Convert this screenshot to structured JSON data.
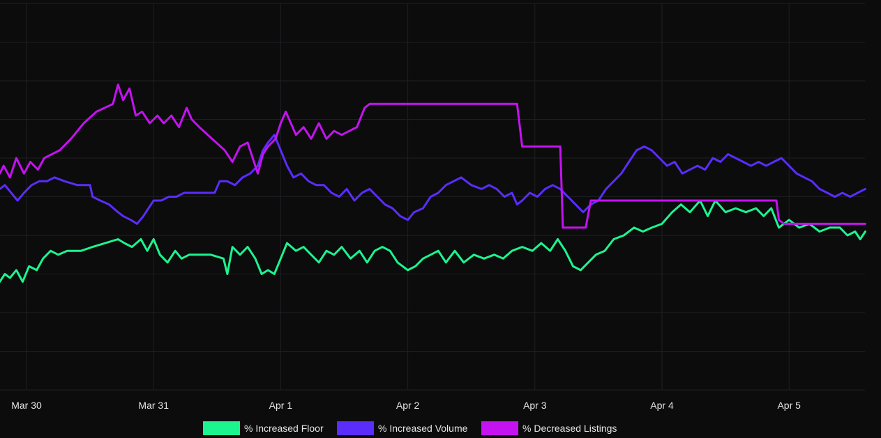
{
  "chart_data": {
    "type": "line",
    "title": "",
    "xlabel": "",
    "ylabel": "",
    "x_ticks": [
      "Mar 30",
      "Mar 31",
      "Apr 1",
      "Apr 2",
      "Apr 3",
      "Apr 4",
      "Apr 5"
    ],
    "xlim": [
      -0.21,
      6.6
    ],
    "ylim": [
      0,
      10
    ],
    "grid": true,
    "legend_position": "bottom",
    "series": [
      {
        "name": "% Increased Floor",
        "color": "#1cf58f",
        "points": [
          [
            -0.21,
            2.8
          ],
          [
            -0.17,
            3.0
          ],
          [
            -0.13,
            2.9
          ],
          [
            -0.08,
            3.1
          ],
          [
            -0.03,
            2.8
          ],
          [
            0.02,
            3.2
          ],
          [
            0.08,
            3.1
          ],
          [
            0.13,
            3.4
          ],
          [
            0.19,
            3.6
          ],
          [
            0.25,
            3.5
          ],
          [
            0.32,
            3.6
          ],
          [
            0.43,
            3.6
          ],
          [
            0.52,
            3.7
          ],
          [
            0.62,
            3.8
          ],
          [
            0.72,
            3.9
          ],
          [
            0.77,
            3.8
          ],
          [
            0.83,
            3.7
          ],
          [
            0.9,
            3.9
          ],
          [
            0.95,
            3.6
          ],
          [
            1.0,
            3.9
          ],
          [
            1.05,
            3.5
          ],
          [
            1.11,
            3.3
          ],
          [
            1.17,
            3.6
          ],
          [
            1.22,
            3.4
          ],
          [
            1.28,
            3.5
          ],
          [
            1.34,
            3.5
          ],
          [
            1.45,
            3.5
          ],
          [
            1.55,
            3.4
          ],
          [
            1.58,
            3.0
          ],
          [
            1.62,
            3.7
          ],
          [
            1.68,
            3.5
          ],
          [
            1.74,
            3.7
          ],
          [
            1.8,
            3.4
          ],
          [
            1.85,
            3.0
          ],
          [
            1.9,
            3.1
          ],
          [
            1.95,
            3.0
          ],
          [
            2.0,
            3.4
          ],
          [
            2.05,
            3.8
          ],
          [
            2.12,
            3.6
          ],
          [
            2.18,
            3.7
          ],
          [
            2.24,
            3.5
          ],
          [
            2.3,
            3.3
          ],
          [
            2.36,
            3.6
          ],
          [
            2.42,
            3.5
          ],
          [
            2.48,
            3.7
          ],
          [
            2.55,
            3.4
          ],
          [
            2.62,
            3.6
          ],
          [
            2.68,
            3.3
          ],
          [
            2.74,
            3.6
          ],
          [
            2.8,
            3.7
          ],
          [
            2.86,
            3.6
          ],
          [
            2.92,
            3.3
          ],
          [
            3.0,
            3.1
          ],
          [
            3.06,
            3.2
          ],
          [
            3.12,
            3.4
          ],
          [
            3.18,
            3.5
          ],
          [
            3.24,
            3.6
          ],
          [
            3.3,
            3.3
          ],
          [
            3.37,
            3.6
          ],
          [
            3.44,
            3.3
          ],
          [
            3.52,
            3.5
          ],
          [
            3.6,
            3.4
          ],
          [
            3.68,
            3.5
          ],
          [
            3.75,
            3.4
          ],
          [
            3.82,
            3.6
          ],
          [
            3.9,
            3.7
          ],
          [
            3.98,
            3.6
          ],
          [
            4.05,
            3.8
          ],
          [
            4.12,
            3.6
          ],
          [
            4.18,
            3.9
          ],
          [
            4.24,
            3.6
          ],
          [
            4.3,
            3.2
          ],
          [
            4.36,
            3.1
          ],
          [
            4.42,
            3.3
          ],
          [
            4.48,
            3.5
          ],
          [
            4.55,
            3.6
          ],
          [
            4.62,
            3.9
          ],
          [
            4.7,
            4.0
          ],
          [
            4.78,
            4.2
          ],
          [
            4.85,
            4.1
          ],
          [
            4.92,
            4.2
          ],
          [
            5.0,
            4.3
          ],
          [
            5.08,
            4.6
          ],
          [
            5.15,
            4.8
          ],
          [
            5.22,
            4.6
          ],
          [
            5.3,
            4.9
          ],
          [
            5.36,
            4.5
          ],
          [
            5.42,
            4.9
          ],
          [
            5.5,
            4.6
          ],
          [
            5.58,
            4.7
          ],
          [
            5.66,
            4.6
          ],
          [
            5.74,
            4.7
          ],
          [
            5.8,
            4.5
          ],
          [
            5.86,
            4.7
          ],
          [
            5.92,
            4.2
          ],
          [
            6.0,
            4.4
          ],
          [
            6.08,
            4.2
          ],
          [
            6.16,
            4.3
          ],
          [
            6.24,
            4.1
          ],
          [
            6.32,
            4.2
          ],
          [
            6.4,
            4.2
          ],
          [
            6.46,
            4.0
          ],
          [
            6.52,
            4.1
          ],
          [
            6.56,
            3.9
          ],
          [
            6.6,
            4.1
          ]
        ]
      },
      {
        "name": "% Increased Volume",
        "color": "#5a2dfa",
        "points": [
          [
            -0.21,
            5.2
          ],
          [
            -0.17,
            5.3
          ],
          [
            -0.12,
            5.1
          ],
          [
            -0.07,
            4.9
          ],
          [
            -0.02,
            5.1
          ],
          [
            0.04,
            5.3
          ],
          [
            0.1,
            5.4
          ],
          [
            0.16,
            5.4
          ],
          [
            0.22,
            5.5
          ],
          [
            0.3,
            5.4
          ],
          [
            0.4,
            5.3
          ],
          [
            0.5,
            5.3
          ],
          [
            0.52,
            5.0
          ],
          [
            0.58,
            4.9
          ],
          [
            0.65,
            4.8
          ],
          [
            0.72,
            4.6
          ],
          [
            0.76,
            4.5
          ],
          [
            0.82,
            4.4
          ],
          [
            0.87,
            4.3
          ],
          [
            0.92,
            4.5
          ],
          [
            0.96,
            4.7
          ],
          [
            1.0,
            4.9
          ],
          [
            1.06,
            4.9
          ],
          [
            1.12,
            5.0
          ],
          [
            1.18,
            5.0
          ],
          [
            1.24,
            5.1
          ],
          [
            1.3,
            5.1
          ],
          [
            1.38,
            5.1
          ],
          [
            1.48,
            5.1
          ],
          [
            1.52,
            5.4
          ],
          [
            1.58,
            5.4
          ],
          [
            1.64,
            5.3
          ],
          [
            1.7,
            5.5
          ],
          [
            1.76,
            5.6
          ],
          [
            1.82,
            5.8
          ],
          [
            1.86,
            6.2
          ],
          [
            1.9,
            6.4
          ],
          [
            1.95,
            6.6
          ],
          [
            2.0,
            6.2
          ],
          [
            2.05,
            5.8
          ],
          [
            2.1,
            5.5
          ],
          [
            2.16,
            5.6
          ],
          [
            2.22,
            5.4
          ],
          [
            2.28,
            5.3
          ],
          [
            2.34,
            5.3
          ],
          [
            2.4,
            5.1
          ],
          [
            2.46,
            5.0
          ],
          [
            2.52,
            5.2
          ],
          [
            2.58,
            4.9
          ],
          [
            2.64,
            5.1
          ],
          [
            2.7,
            5.2
          ],
          [
            2.76,
            5.0
          ],
          [
            2.82,
            4.8
          ],
          [
            2.88,
            4.7
          ],
          [
            2.94,
            4.5
          ],
          [
            3.0,
            4.4
          ],
          [
            3.05,
            4.6
          ],
          [
            3.12,
            4.7
          ],
          [
            3.18,
            5.0
          ],
          [
            3.24,
            5.1
          ],
          [
            3.3,
            5.3
          ],
          [
            3.36,
            5.4
          ],
          [
            3.42,
            5.5
          ],
          [
            3.5,
            5.3
          ],
          [
            3.58,
            5.2
          ],
          [
            3.64,
            5.3
          ],
          [
            3.7,
            5.2
          ],
          [
            3.76,
            5.0
          ],
          [
            3.82,
            5.1
          ],
          [
            3.86,
            4.8
          ],
          [
            3.9,
            4.9
          ],
          [
            3.96,
            5.1
          ],
          [
            4.02,
            5.0
          ],
          [
            4.08,
            5.2
          ],
          [
            4.14,
            5.3
          ],
          [
            4.2,
            5.2
          ],
          [
            4.26,
            5.0
          ],
          [
            4.32,
            4.8
          ],
          [
            4.38,
            4.6
          ],
          [
            4.44,
            4.8
          ],
          [
            4.5,
            4.9
          ],
          [
            4.56,
            5.2
          ],
          [
            4.62,
            5.4
          ],
          [
            4.68,
            5.6
          ],
          [
            4.74,
            5.9
          ],
          [
            4.8,
            6.2
          ],
          [
            4.86,
            6.3
          ],
          [
            4.92,
            6.2
          ],
          [
            4.98,
            6.0
          ],
          [
            5.04,
            5.8
          ],
          [
            5.1,
            5.9
          ],
          [
            5.16,
            5.6
          ],
          [
            5.22,
            5.7
          ],
          [
            5.28,
            5.8
          ],
          [
            5.34,
            5.7
          ],
          [
            5.4,
            6.0
          ],
          [
            5.46,
            5.9
          ],
          [
            5.52,
            6.1
          ],
          [
            5.58,
            6.0
          ],
          [
            5.64,
            5.9
          ],
          [
            5.7,
            5.8
          ],
          [
            5.76,
            5.9
          ],
          [
            5.82,
            5.8
          ],
          [
            5.88,
            5.9
          ],
          [
            5.94,
            6.0
          ],
          [
            6.0,
            5.8
          ],
          [
            6.06,
            5.6
          ],
          [
            6.12,
            5.5
          ],
          [
            6.18,
            5.4
          ],
          [
            6.24,
            5.2
          ],
          [
            6.3,
            5.1
          ],
          [
            6.36,
            5.0
          ],
          [
            6.42,
            5.1
          ],
          [
            6.48,
            5.0
          ],
          [
            6.54,
            5.1
          ],
          [
            6.6,
            5.2
          ]
        ]
      },
      {
        "name": "% Decreased Listings",
        "color": "#c512f0",
        "points": [
          [
            -0.21,
            5.6
          ],
          [
            -0.18,
            5.8
          ],
          [
            -0.13,
            5.5
          ],
          [
            -0.08,
            6.0
          ],
          [
            -0.02,
            5.6
          ],
          [
            0.03,
            5.9
          ],
          [
            0.09,
            5.7
          ],
          [
            0.14,
            6.0
          ],
          [
            0.2,
            6.1
          ],
          [
            0.26,
            6.2
          ],
          [
            0.35,
            6.5
          ],
          [
            0.45,
            6.9
          ],
          [
            0.55,
            7.2
          ],
          [
            0.68,
            7.4
          ],
          [
            0.72,
            7.9
          ],
          [
            0.76,
            7.5
          ],
          [
            0.81,
            7.8
          ],
          [
            0.86,
            7.1
          ],
          [
            0.91,
            7.2
          ],
          [
            0.97,
            6.9
          ],
          [
            1.03,
            7.1
          ],
          [
            1.08,
            6.9
          ],
          [
            1.14,
            7.1
          ],
          [
            1.2,
            6.8
          ],
          [
            1.26,
            7.3
          ],
          [
            1.3,
            7.0
          ],
          [
            1.36,
            6.8
          ],
          [
            1.46,
            6.5
          ],
          [
            1.56,
            6.2
          ],
          [
            1.62,
            5.9
          ],
          [
            1.68,
            6.3
          ],
          [
            1.74,
            6.4
          ],
          [
            1.78,
            6.0
          ],
          [
            1.82,
            5.6
          ],
          [
            1.86,
            6.1
          ],
          [
            1.9,
            6.3
          ],
          [
            1.96,
            6.5
          ],
          [
            2.0,
            6.9
          ],
          [
            2.04,
            7.2
          ],
          [
            2.08,
            6.9
          ],
          [
            2.12,
            6.6
          ],
          [
            2.18,
            6.8
          ],
          [
            2.24,
            6.5
          ],
          [
            2.3,
            6.9
          ],
          [
            2.36,
            6.5
          ],
          [
            2.42,
            6.7
          ],
          [
            2.48,
            6.6
          ],
          [
            2.54,
            6.7
          ],
          [
            2.6,
            6.8
          ],
          [
            2.66,
            7.3
          ],
          [
            2.7,
            7.4
          ],
          [
            2.8,
            7.4
          ],
          [
            3.2,
            7.4
          ],
          [
            3.7,
            7.4
          ],
          [
            3.86,
            7.4
          ],
          [
            3.9,
            6.3
          ],
          [
            4.0,
            6.3
          ],
          [
            4.2,
            6.3
          ],
          [
            4.22,
            4.2
          ],
          [
            4.4,
            4.2
          ],
          [
            4.44,
            4.9
          ],
          [
            4.6,
            4.9
          ],
          [
            5.0,
            4.9
          ],
          [
            5.4,
            4.9
          ],
          [
            5.9,
            4.9
          ],
          [
            5.92,
            4.4
          ],
          [
            5.96,
            4.3
          ],
          [
            6.2,
            4.3
          ],
          [
            6.4,
            4.3
          ],
          [
            6.6,
            4.3
          ]
        ]
      }
    ]
  }
}
